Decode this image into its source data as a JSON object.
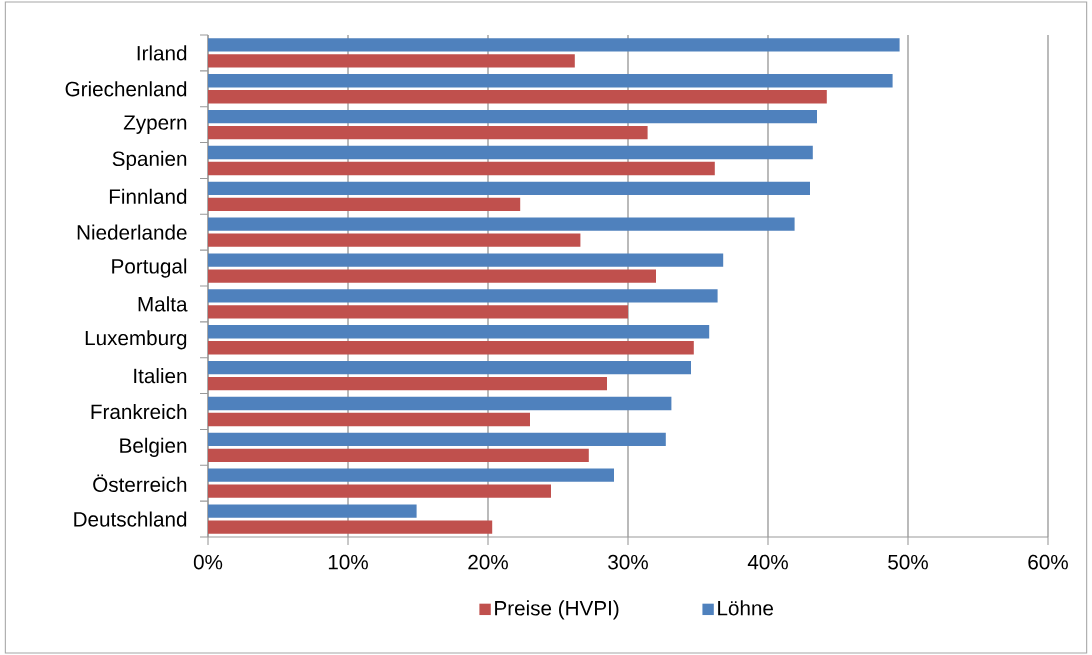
{
  "chart_data": {
    "type": "bar",
    "orientation": "horizontal",
    "categories": [
      "Irland",
      "Griechenland",
      "Zypern",
      "Spanien",
      "Finnland",
      "Niederlande",
      "Portugal",
      "Malta",
      "Luxemburg",
      "Italien",
      "Frankreich",
      "Belgien",
      "Österreich",
      "Deutschland"
    ],
    "series": [
      {
        "name": "Preise (HVPI)",
        "color": "#c0504d",
        "values": [
          26.2,
          44.2,
          31.4,
          36.2,
          22.3,
          26.6,
          32.0,
          30.0,
          34.7,
          28.5,
          23.0,
          27.2,
          24.5,
          20.3
        ]
      },
      {
        "name": "Löhne",
        "color": "#4f81bd",
        "values": [
          49.4,
          48.9,
          43.5,
          43.2,
          43.0,
          41.9,
          36.8,
          36.4,
          35.8,
          34.5,
          33.1,
          32.7,
          29.0,
          14.9
        ]
      }
    ],
    "xlim": [
      0,
      60
    ],
    "xticks": [
      {
        "value": 0,
        "label": "0%"
      },
      {
        "value": 10,
        "label": "10%"
      },
      {
        "value": 20,
        "label": "20%"
      },
      {
        "value": 30,
        "label": "30%"
      },
      {
        "value": 40,
        "label": "40%"
      },
      {
        "value": 50,
        "label": "50%"
      },
      {
        "value": 60,
        "label": "60%"
      }
    ],
    "grid": "x",
    "legend": "bottom"
  }
}
